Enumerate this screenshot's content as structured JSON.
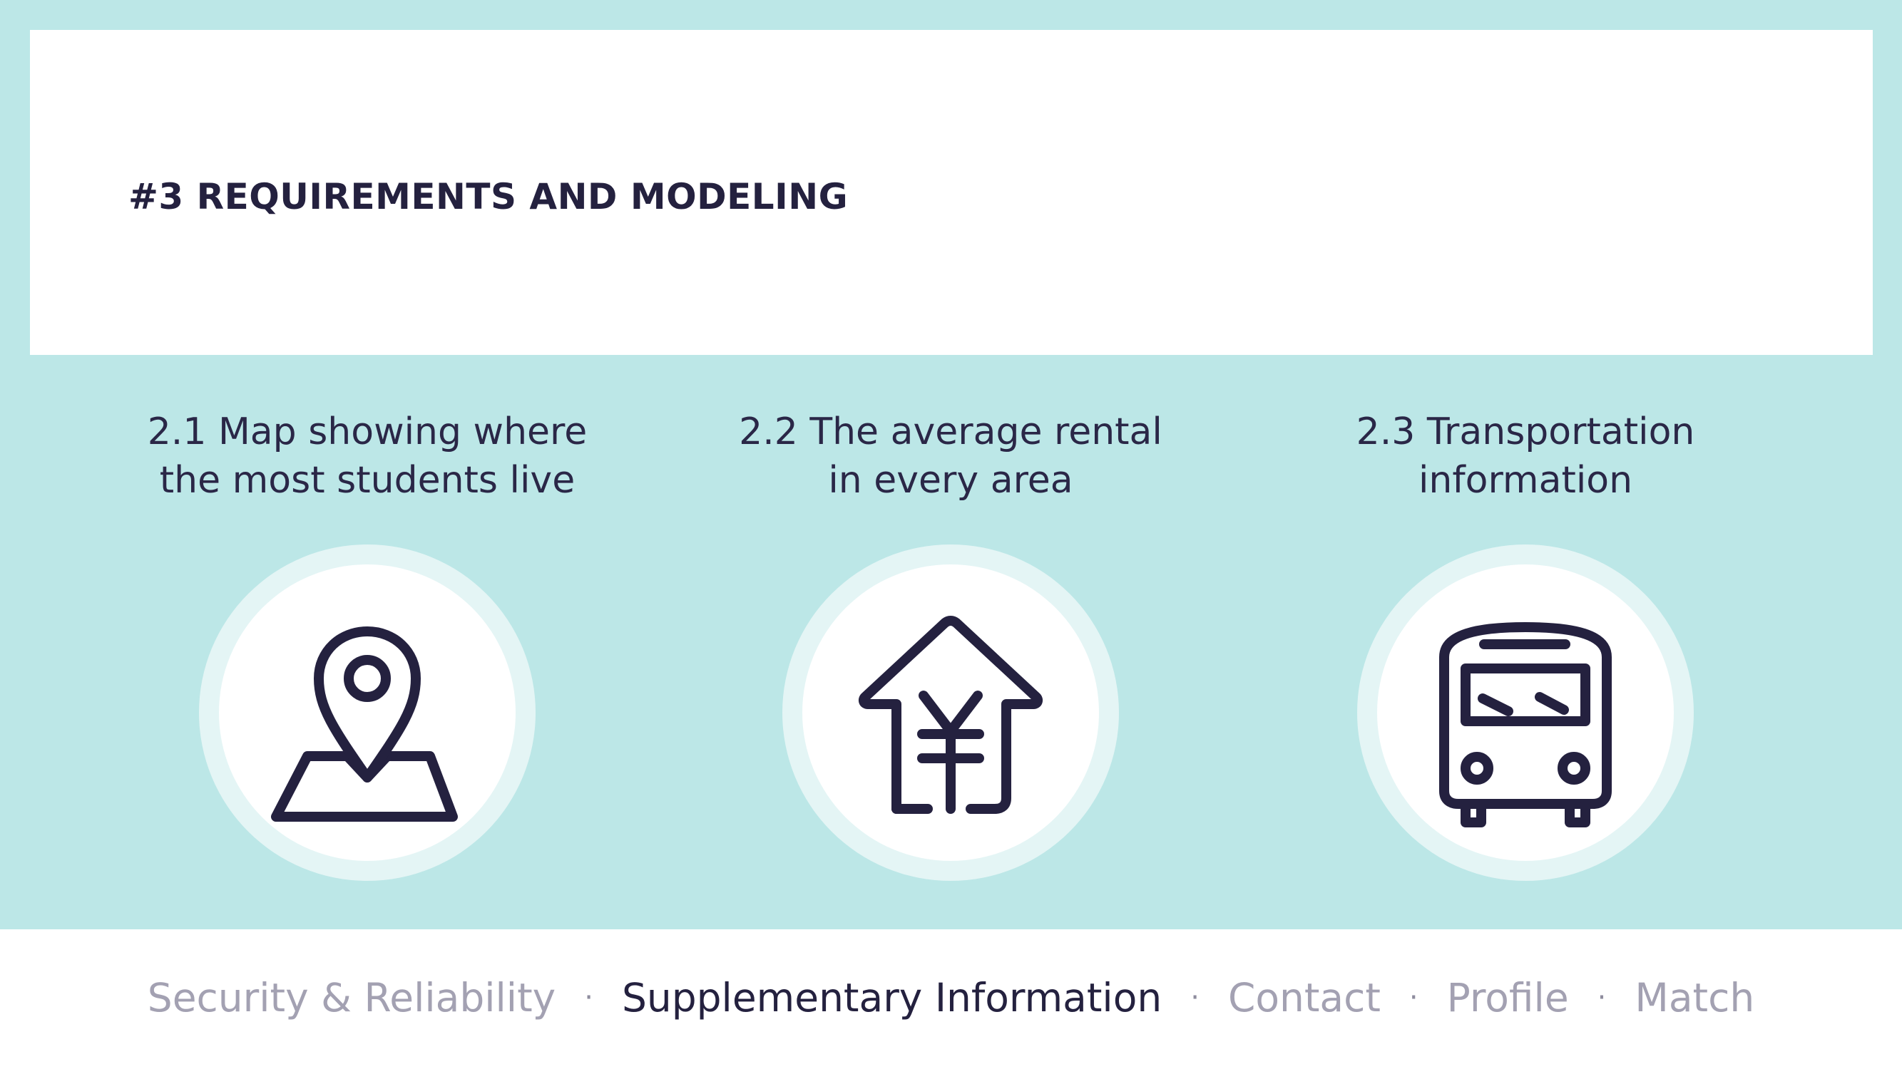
{
  "page": {
    "title": "#3 REQUIREMENTS AND MODELING"
  },
  "features": [
    {
      "heading_line1": "2.1 Map showing where",
      "heading_line2": "the most students live",
      "icon": "map-pin-icon"
    },
    {
      "heading_line1": "2.2 The average rental",
      "heading_line2": "in every area",
      "icon": "house-yen-icon"
    },
    {
      "heading_line1": "2.3 Transportation",
      "heading_line2": "information",
      "icon": "bus-icon"
    }
  ],
  "footer": {
    "separator": "·",
    "items": [
      {
        "label": "Security & Reliability",
        "active": false
      },
      {
        "label": "Supplementary Information",
        "active": true
      },
      {
        "label": "Contact",
        "active": false
      },
      {
        "label": "Profile",
        "active": false
      },
      {
        "label": "Match",
        "active": false
      }
    ]
  },
  "colors": {
    "background": "#bce7e7",
    "text_dark": "#24213f",
    "nav_inactive": "#a3a1b2",
    "ring": "#e4f5f5"
  }
}
